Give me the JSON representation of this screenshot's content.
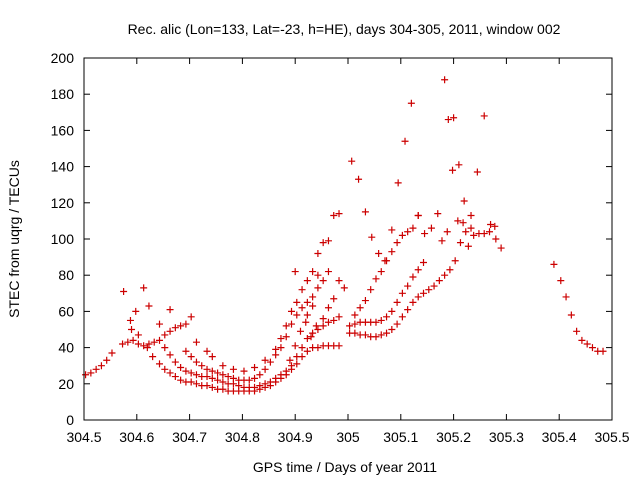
{
  "chart_data": {
    "type": "scatter",
    "title": "Rec. alic (Lon=133, Lat=-23, h=HE), days 304-305, 2011, window 002",
    "xlabel": "GPS time / Days of year 2011",
    "ylabel": "STEC from uqrg / TECUs",
    "xlim": [
      304.5,
      305.5
    ],
    "ylim": [
      0,
      200
    ],
    "x_ticks": [
      304.5,
      304.6,
      304.7,
      304.8,
      304.9,
      305.0,
      305.1,
      305.2,
      305.3,
      305.4,
      305.5
    ],
    "x_tick_labels": [
      "304.5",
      "304.6",
      "304.7",
      "304.8",
      "304.9",
      "305",
      "305.1",
      "305.2",
      "305.3",
      "305.4",
      "305.5"
    ],
    "y_ticks": [
      0,
      20,
      40,
      60,
      80,
      100,
      120,
      140,
      160,
      180,
      200
    ],
    "y_tick_labels": [
      "0",
      "20",
      "40",
      "60",
      "80",
      "100",
      "120",
      "140",
      "160",
      "180",
      "200"
    ],
    "grid": false,
    "marker": "+",
    "color": "#cc0000",
    "points": [
      [
        304.503,
        25
      ],
      [
        304.513,
        26
      ],
      [
        304.523,
        28
      ],
      [
        304.533,
        30
      ],
      [
        304.543,
        33
      ],
      [
        304.553,
        37
      ],
      [
        304.573,
        42
      ],
      [
        304.583,
        43
      ],
      [
        304.593,
        44
      ],
      [
        304.603,
        42
      ],
      [
        304.613,
        41
      ],
      [
        304.623,
        42
      ],
      [
        304.633,
        43
      ],
      [
        304.643,
        44
      ],
      [
        304.653,
        47
      ],
      [
        304.663,
        49
      ],
      [
        304.673,
        51
      ],
      [
        304.683,
        52
      ],
      [
        304.693,
        53
      ],
      [
        304.703,
        57
      ],
      [
        304.575,
        71
      ],
      [
        304.588,
        55
      ],
      [
        304.59,
        50
      ],
      [
        304.598,
        60
      ],
      [
        304.613,
        73
      ],
      [
        304.623,
        63
      ],
      [
        304.643,
        53
      ],
      [
        304.663,
        61
      ],
      [
        304.603,
        47
      ],
      [
        304.62,
        40
      ],
      [
        304.63,
        35
      ],
      [
        304.643,
        31
      ],
      [
        304.653,
        28
      ],
      [
        304.663,
        26
      ],
      [
        304.673,
        24
      ],
      [
        304.683,
        22
      ],
      [
        304.693,
        21
      ],
      [
        304.703,
        21
      ],
      [
        304.713,
        20
      ],
      [
        304.723,
        19
      ],
      [
        304.733,
        19
      ],
      [
        304.743,
        18
      ],
      [
        304.753,
        17
      ],
      [
        304.763,
        17
      ],
      [
        304.773,
        16
      ],
      [
        304.783,
        16
      ],
      [
        304.793,
        16
      ],
      [
        304.803,
        16
      ],
      [
        304.813,
        16
      ],
      [
        304.823,
        16
      ],
      [
        304.833,
        17
      ],
      [
        304.843,
        18
      ],
      [
        304.853,
        19
      ],
      [
        304.863,
        21
      ],
      [
        304.873,
        23
      ],
      [
        304.883,
        25
      ],
      [
        304.893,
        28
      ],
      [
        304.903,
        31
      ],
      [
        304.913,
        35
      ],
      [
        304.923,
        38
      ],
      [
        304.933,
        40
      ],
      [
        304.943,
        40
      ],
      [
        304.953,
        41
      ],
      [
        304.963,
        41
      ],
      [
        304.973,
        41
      ],
      [
        304.983,
        41
      ],
      [
        304.653,
        40
      ],
      [
        304.663,
        36
      ],
      [
        304.673,
        32
      ],
      [
        304.683,
        29
      ],
      [
        304.693,
        27
      ],
      [
        304.703,
        26
      ],
      [
        304.713,
        25
      ],
      [
        304.723,
        24
      ],
      [
        304.733,
        24
      ],
      [
        304.743,
        23
      ],
      [
        304.753,
        22
      ],
      [
        304.763,
        21
      ],
      [
        304.773,
        20
      ],
      [
        304.783,
        20
      ],
      [
        304.793,
        19
      ],
      [
        304.803,
        18
      ],
      [
        304.813,
        18
      ],
      [
        304.823,
        18
      ],
      [
        304.833,
        19
      ],
      [
        304.843,
        20
      ],
      [
        304.853,
        21
      ],
      [
        304.863,
        23
      ],
      [
        304.873,
        25
      ],
      [
        304.883,
        27
      ],
      [
        304.893,
        30
      ],
      [
        304.903,
        35
      ],
      [
        304.913,
        40
      ],
      [
        304.923,
        45
      ],
      [
        304.933,
        48
      ],
      [
        304.943,
        50
      ],
      [
        304.953,
        52
      ],
      [
        304.963,
        54
      ],
      [
        304.973,
        55
      ],
      [
        304.983,
        57
      ],
      [
        304.693,
        38
      ],
      [
        304.703,
        35
      ],
      [
        304.713,
        32
      ],
      [
        304.723,
        30
      ],
      [
        304.733,
        28
      ],
      [
        304.743,
        27
      ],
      [
        304.753,
        26
      ],
      [
        304.763,
        25
      ],
      [
        304.773,
        24
      ],
      [
        304.783,
        23
      ],
      [
        304.793,
        22
      ],
      [
        304.803,
        22
      ],
      [
        304.813,
        22
      ],
      [
        304.823,
        23
      ],
      [
        304.833,
        25
      ],
      [
        304.843,
        28
      ],
      [
        304.853,
        32
      ],
      [
        304.863,
        36
      ],
      [
        304.873,
        40
      ],
      [
        304.883,
        46
      ],
      [
        304.893,
        53
      ],
      [
        304.903,
        58
      ],
      [
        304.913,
        62
      ],
      [
        304.923,
        65
      ],
      [
        304.933,
        68
      ],
      [
        304.943,
        73
      ],
      [
        304.953,
        77
      ],
      [
        304.963,
        82
      ],
      [
        304.713,
        43
      ],
      [
        304.733,
        38
      ],
      [
        304.743,
        35
      ],
      [
        304.763,
        30
      ],
      [
        304.783,
        28
      ],
      [
        304.803,
        27
      ],
      [
        304.823,
        29
      ],
      [
        304.843,
        33
      ],
      [
        304.863,
        39
      ],
      [
        304.873,
        45
      ],
      [
        304.883,
        52
      ],
      [
        304.893,
        60
      ],
      [
        304.903,
        65
      ],
      [
        304.913,
        72
      ],
      [
        304.923,
        77
      ],
      [
        304.933,
        82
      ],
      [
        304.943,
        92
      ],
      [
        304.953,
        98
      ],
      [
        304.963,
        99
      ],
      [
        304.973,
        113
      ],
      [
        304.983,
        114
      ],
      [
        304.9,
        82
      ],
      [
        304.923,
        58
      ],
      [
        304.933,
        63
      ],
      [
        304.943,
        80
      ],
      [
        304.953,
        56
      ],
      [
        304.963,
        62
      ],
      [
        304.973,
        67
      ],
      [
        304.983,
        77
      ],
      [
        304.993,
        73
      ],
      [
        304.89,
        33
      ],
      [
        304.9,
        41
      ],
      [
        304.91,
        49
      ],
      [
        304.92,
        54
      ],
      [
        304.93,
        46
      ],
      [
        304.94,
        52
      ],
      [
        305.003,
        48
      ],
      [
        305.013,
        48
      ],
      [
        305.023,
        47
      ],
      [
        305.033,
        47
      ],
      [
        305.043,
        46
      ],
      [
        305.053,
        46
      ],
      [
        305.063,
        47
      ],
      [
        305.073,
        48
      ],
      [
        305.083,
        50
      ],
      [
        305.093,
        53
      ],
      [
        305.103,
        57
      ],
      [
        305.113,
        61
      ],
      [
        305.123,
        65
      ],
      [
        305.133,
        68
      ],
      [
        305.143,
        70
      ],
      [
        305.153,
        72
      ],
      [
        305.163,
        74
      ],
      [
        305.173,
        77
      ],
      [
        305.183,
        80
      ],
      [
        305.193,
        83
      ],
      [
        305.203,
        88
      ],
      [
        305.213,
        98
      ],
      [
        305.223,
        104
      ],
      [
        305.233,
        106
      ],
      [
        305.003,
        52
      ],
      [
        305.013,
        53
      ],
      [
        305.023,
        54
      ],
      [
        305.033,
        54
      ],
      [
        305.043,
        54
      ],
      [
        305.053,
        54
      ],
      [
        305.063,
        55
      ],
      [
        305.073,
        57
      ],
      [
        305.083,
        60
      ],
      [
        305.093,
        65
      ],
      [
        305.103,
        70
      ],
      [
        305.113,
        74
      ],
      [
        305.123,
        79
      ],
      [
        305.133,
        83
      ],
      [
        305.143,
        87
      ],
      [
        305.013,
        58
      ],
      [
        305.023,
        62
      ],
      [
        305.033,
        66
      ],
      [
        305.043,
        72
      ],
      [
        305.053,
        78
      ],
      [
        305.063,
        82
      ],
      [
        305.073,
        88
      ],
      [
        305.083,
        93
      ],
      [
        305.093,
        98
      ],
      [
        305.103,
        102
      ],
      [
        305.113,
        104
      ],
      [
        305.123,
        106
      ],
      [
        305.133,
        113
      ],
      [
        305.007,
        143
      ],
      [
        305.02,
        133
      ],
      [
        305.033,
        115
      ],
      [
        305.045,
        101
      ],
      [
        305.058,
        92
      ],
      [
        305.07,
        88
      ],
      [
        305.083,
        105
      ],
      [
        305.095,
        131
      ],
      [
        305.108,
        154
      ],
      [
        305.12,
        175
      ],
      [
        305.133,
        113
      ],
      [
        305.145,
        103
      ],
      [
        305.158,
        106
      ],
      [
        305.17,
        114
      ],
      [
        305.183,
        188
      ],
      [
        305.19,
        166
      ],
      [
        305.2,
        167
      ],
      [
        305.21,
        141
      ],
      [
        305.22,
        121
      ],
      [
        305.233,
        113
      ],
      [
        305.245,
        137
      ],
      [
        305.258,
        168
      ],
      [
        305.27,
        108
      ],
      [
        305.28,
        100
      ],
      [
        305.29,
        95
      ],
      [
        305.178,
        99
      ],
      [
        305.188,
        104
      ],
      [
        305.198,
        138
      ],
      [
        305.208,
        110
      ],
      [
        305.218,
        109
      ],
      [
        305.228,
        96
      ],
      [
        305.238,
        102
      ],
      [
        305.248,
        103
      ],
      [
        305.258,
        103
      ],
      [
        305.268,
        104
      ],
      [
        305.278,
        107
      ],
      [
        305.39,
        86
      ],
      [
        305.403,
        77
      ],
      [
        305.413,
        68
      ],
      [
        305.423,
        58
      ],
      [
        305.433,
        49
      ],
      [
        305.443,
        44
      ],
      [
        305.453,
        42
      ],
      [
        305.463,
        40
      ],
      [
        305.473,
        38
      ],
      [
        305.483,
        38
      ]
    ]
  }
}
